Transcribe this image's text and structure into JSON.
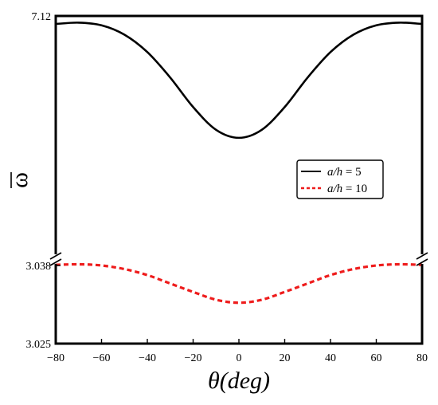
{
  "chart_data": {
    "type": "line",
    "xlabel": "θ(deg)",
    "ylabel": "ω",
    "xlim": [
      -80,
      80
    ],
    "xticks": [
      -80,
      -60,
      -40,
      -20,
      0,
      20,
      40,
      60,
      80
    ],
    "x_tick_labels": [
      "−80",
      "−60",
      "−40",
      "−20",
      "0",
      "20",
      "40",
      "60",
      "80"
    ],
    "axis_break": true,
    "y_upper_tick_labels": [
      "7.12"
    ],
    "y_lower_tick_labels": [
      "3.038",
      "3.025"
    ],
    "grid": false,
    "legend_position": "right-middle",
    "series": [
      {
        "name": "a/h = 5",
        "name_italic": "a/h",
        "name_rest": " = 5",
        "color": "#000000",
        "style": "solid",
        "x": [
          -80,
          -70,
          -60,
          -50,
          -40,
          -30,
          -20,
          -10,
          0,
          10,
          20,
          30,
          40,
          50,
          60,
          70,
          80
        ],
        "y": [
          7.114,
          7.115,
          7.113,
          7.106,
          7.093,
          7.074,
          7.052,
          7.035,
          7.029,
          7.035,
          7.052,
          7.074,
          7.093,
          7.106,
          7.113,
          7.115,
          7.114
        ]
      },
      {
        "name": "a/h = 10",
        "name_italic": "a/h",
        "name_rest": " = 10",
        "color": "#ee1c1c",
        "style": "dashed",
        "x": [
          -80,
          -70,
          -60,
          -50,
          -40,
          -30,
          -20,
          -10,
          0,
          10,
          20,
          30,
          40,
          50,
          60,
          70,
          80
        ],
        "y": [
          3.0381,
          3.0382,
          3.038,
          3.0374,
          3.0364,
          3.035,
          3.0336,
          3.0323,
          3.0318,
          3.0323,
          3.0336,
          3.035,
          3.0364,
          3.0374,
          3.038,
          3.0382,
          3.0381
        ]
      }
    ]
  }
}
